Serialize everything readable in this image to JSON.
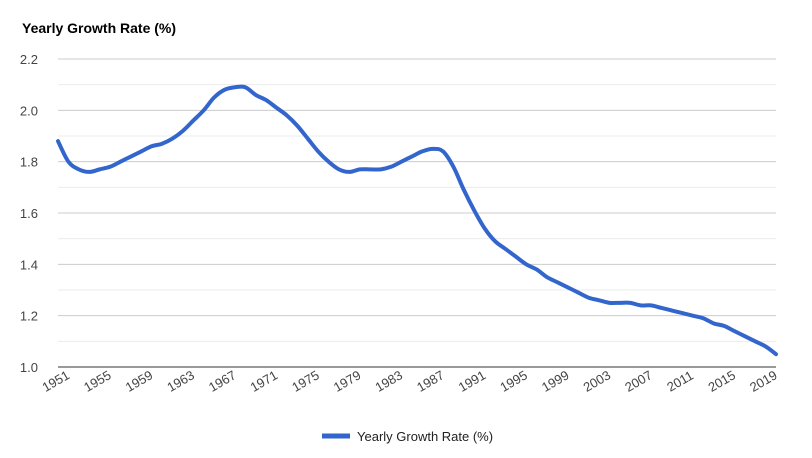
{
  "chart_data": {
    "type": "line",
    "title": "Yearly Growth Rate (%)",
    "xlabel": "",
    "ylabel": "",
    "ylim": [
      1.0,
      2.2
    ],
    "yticks": [
      "1.0",
      "1.2",
      "1.4",
      "1.6",
      "1.8",
      "2.0",
      "2.2"
    ],
    "xticks": [
      "1951",
      "1955",
      "1959",
      "1963",
      "1967",
      "1971",
      "1975",
      "1979",
      "1983",
      "1987",
      "1991",
      "1995",
      "1999",
      "2003",
      "2007",
      "2011",
      "2015",
      "2019"
    ],
    "x_range": [
      1951,
      2020
    ],
    "grid": true,
    "legend_position": "bottom",
    "colors": {
      "line": "#3366cc",
      "grid": "#cccccc",
      "axis": "#333333"
    },
    "series": [
      {
        "name": "Yearly Growth Rate (%)",
        "x": [
          1951,
          1952,
          1953,
          1954,
          1955,
          1956,
          1957,
          1958,
          1959,
          1960,
          1961,
          1962,
          1963,
          1964,
          1965,
          1966,
          1967,
          1968,
          1969,
          1970,
          1971,
          1972,
          1973,
          1974,
          1975,
          1976,
          1977,
          1978,
          1979,
          1980,
          1981,
          1982,
          1983,
          1984,
          1985,
          1986,
          1987,
          1988,
          1989,
          1990,
          1991,
          1992,
          1993,
          1994,
          1995,
          1996,
          1997,
          1998,
          1999,
          2000,
          2001,
          2002,
          2003,
          2004,
          2005,
          2006,
          2007,
          2008,
          2009,
          2010,
          2011,
          2012,
          2013,
          2014,
          2015,
          2016,
          2017,
          2018,
          2019,
          2020
        ],
        "values": [
          1.88,
          1.8,
          1.77,
          1.76,
          1.77,
          1.78,
          1.8,
          1.82,
          1.84,
          1.86,
          1.87,
          1.89,
          1.92,
          1.96,
          2.0,
          2.05,
          2.08,
          2.09,
          2.09,
          2.06,
          2.04,
          2.01,
          1.98,
          1.94,
          1.89,
          1.84,
          1.8,
          1.77,
          1.76,
          1.77,
          1.77,
          1.77,
          1.78,
          1.8,
          1.82,
          1.84,
          1.85,
          1.84,
          1.78,
          1.69,
          1.61,
          1.54,
          1.49,
          1.46,
          1.43,
          1.4,
          1.38,
          1.35,
          1.33,
          1.31,
          1.29,
          1.27,
          1.26,
          1.25,
          1.25,
          1.25,
          1.24,
          1.24,
          1.23,
          1.22,
          1.21,
          1.2,
          1.19,
          1.17,
          1.16,
          1.14,
          1.12,
          1.1,
          1.08,
          1.05
        ]
      }
    ]
  }
}
